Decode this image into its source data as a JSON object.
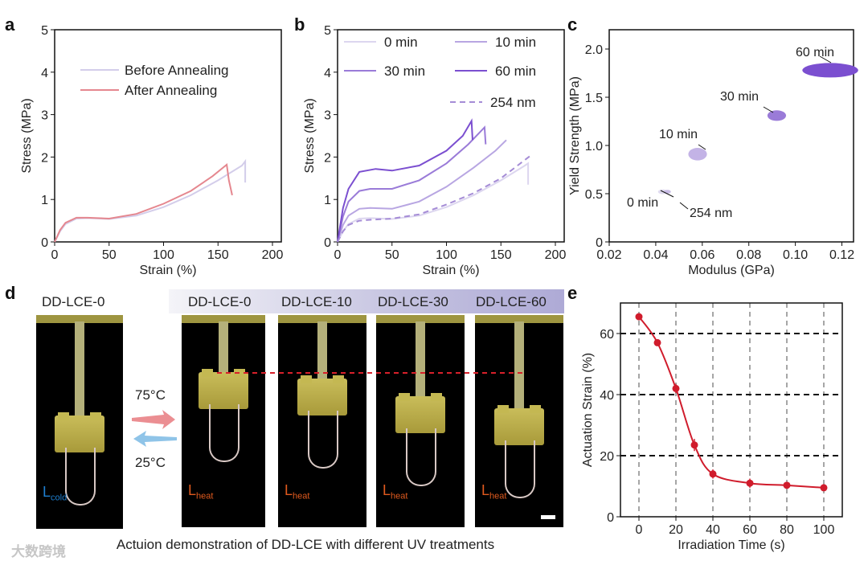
{
  "panel_labels": {
    "a": "a",
    "b": "b",
    "c": "c",
    "d": "d",
    "e": "e"
  },
  "chart_data": [
    {
      "id": "a",
      "type": "line",
      "xlabel": "Strain (%)",
      "ylabel": "Stress (MPa)",
      "xlim": [
        0,
        210
      ],
      "ylim": [
        0,
        5
      ],
      "xticks": [
        0,
        50,
        100,
        150,
        200
      ],
      "yticks": [
        0,
        1,
        2,
        3,
        4,
        5
      ],
      "legend": "top-left",
      "series": [
        {
          "name": "Before Annealing",
          "color": "#d3cdea",
          "dashed": false,
          "x": [
            0,
            5,
            10,
            20,
            30,
            50,
            75,
            100,
            125,
            150,
            172,
            175,
            175
          ],
          "y": [
            0,
            0.25,
            0.42,
            0.55,
            0.56,
            0.54,
            0.62,
            0.82,
            1.1,
            1.45,
            1.8,
            1.9,
            1.4
          ]
        },
        {
          "name": "After Annealing",
          "color": "#e5878f",
          "dashed": false,
          "x": [
            0,
            5,
            10,
            20,
            30,
            50,
            75,
            100,
            125,
            145,
            158,
            160,
            163
          ],
          "y": [
            0,
            0.28,
            0.45,
            0.57,
            0.57,
            0.55,
            0.66,
            0.9,
            1.2,
            1.55,
            1.82,
            1.45,
            1.1
          ]
        }
      ]
    },
    {
      "id": "b",
      "type": "line",
      "xlabel": "Strain (%)",
      "ylabel": "Stress (MPa)",
      "xlim": [
        0,
        210
      ],
      "ylim": [
        0,
        5
      ],
      "xticks": [
        0,
        50,
        100,
        150,
        200
      ],
      "yticks": [
        0,
        1,
        2,
        3,
        4,
        5
      ],
      "legend": "top",
      "series": [
        {
          "name": "0 min",
          "color": "#dcd6ef",
          "dashed": false,
          "x": [
            0,
            5,
            10,
            20,
            30,
            50,
            75,
            100,
            125,
            150,
            172,
            175,
            175
          ],
          "y": [
            0,
            0.25,
            0.42,
            0.55,
            0.56,
            0.54,
            0.62,
            0.82,
            1.1,
            1.45,
            1.8,
            1.85,
            1.35
          ]
        },
        {
          "name": "10 min",
          "color": "#b8a6e2",
          "dashed": false,
          "x": [
            0,
            5,
            10,
            20,
            30,
            50,
            75,
            100,
            125,
            145,
            155
          ],
          "y": [
            0,
            0.4,
            0.62,
            0.78,
            0.8,
            0.78,
            0.95,
            1.3,
            1.75,
            2.15,
            2.4
          ]
        },
        {
          "name": "30 min",
          "color": "#9a7bd8",
          "dashed": false,
          "x": [
            0,
            5,
            10,
            20,
            30,
            50,
            75,
            100,
            120,
            135,
            136
          ],
          "y": [
            0,
            0.6,
            0.95,
            1.2,
            1.25,
            1.25,
            1.45,
            1.85,
            2.3,
            2.7,
            2.3
          ]
        },
        {
          "name": "60 min",
          "color": "#7b4fd0",
          "dashed": false,
          "x": [
            0,
            5,
            10,
            20,
            35,
            50,
            75,
            100,
            115,
            123,
            124
          ],
          "y": [
            0,
            0.8,
            1.25,
            1.65,
            1.72,
            1.68,
            1.8,
            2.15,
            2.5,
            2.85,
            2.4
          ]
        },
        {
          "name": "254 nm",
          "color": "#a58cd6",
          "dashed": true,
          "x": [
            0,
            5,
            10,
            20,
            30,
            50,
            75,
            100,
            125,
            150,
            178
          ],
          "y": [
            0,
            0.25,
            0.4,
            0.5,
            0.52,
            0.55,
            0.65,
            0.88,
            1.15,
            1.5,
            2.05
          ]
        }
      ]
    },
    {
      "id": "c",
      "type": "scatter",
      "xlabel": "Modulus (GPa)",
      "ylabel": "Yield Strength (MPa)",
      "xlim": [
        0.02,
        0.125
      ],
      "ylim": [
        0,
        2.2
      ],
      "xticks": [
        0.02,
        0.04,
        0.06,
        0.08,
        0.1,
        0.12
      ],
      "xtick_labels": [
        "0.02",
        "0.04",
        "0.06",
        "0.08",
        "0.10",
        "0.12"
      ],
      "yticks": [
        0,
        0.5,
        1.0,
        1.5,
        2.0
      ],
      "ytick_labels": [
        "0",
        "0.5",
        "1.0",
        "1.5",
        "2.0"
      ],
      "points": [
        {
          "name": "0 min",
          "x": 0.043,
          "y": 0.52,
          "x_spread": 0.004,
          "y_spread": 0.05,
          "color": "#e0dbf0"
        },
        {
          "name": "254 nm",
          "x": 0.045,
          "y": 0.52,
          "x_spread": 0.003,
          "y_spread": 0.04,
          "color": "#c9bce6"
        },
        {
          "name": "10 min",
          "x": 0.058,
          "y": 0.91,
          "x_spread": 0.008,
          "y_spread": 0.13,
          "color": "#c3b3e6"
        },
        {
          "name": "30 min",
          "x": 0.092,
          "y": 1.31,
          "x_spread": 0.008,
          "y_spread": 0.11,
          "color": "#9a7bd8"
        },
        {
          "name": "60 min",
          "x": 0.115,
          "y": 1.78,
          "x_spread": 0.024,
          "y_spread": 0.15,
          "color": "#7b4fd0"
        }
      ]
    },
    {
      "id": "e",
      "type": "line",
      "xlabel": "Irradiation Time (s)",
      "ylabel": "Actuation Strain (%)",
      "xlim": [
        -10,
        110
      ],
      "ylim": [
        0,
        70
      ],
      "xticks": [
        0,
        20,
        40,
        60,
        80,
        100
      ],
      "yticks": [
        0,
        20,
        40,
        60
      ],
      "grid": true,
      "color": "#d01c2c",
      "x": [
        0,
        10,
        20,
        30,
        40,
        60,
        80,
        100
      ],
      "y": [
        65.5,
        57,
        42,
        23.5,
        14,
        11,
        10.3,
        9.5
      ],
      "yerr": [
        0.8,
        1,
        1.5,
        2,
        1.5,
        1.5,
        0.6,
        0.6
      ]
    }
  ],
  "photos": {
    "header_left": "DD-LCE-0",
    "headers": [
      "DD-LCE-0",
      "DD-LCE-10",
      "DD-LCE-30",
      "DD-LCE-60"
    ],
    "cold_label": "L",
    "cold_sub": "cold",
    "heat_label": "L",
    "heat_sub": "heat",
    "heat_temp": "75°C",
    "cool_temp": "25°C",
    "caption": "Actuion demonstration of DD-LCE with different UV treatments",
    "cold_color": "#1e7fd0",
    "heat_color": "#e05a1e",
    "arrow_heat_color": "#eb8e92",
    "arrow_cool_color": "#8fc4e8"
  },
  "watermark": "大数跨境"
}
